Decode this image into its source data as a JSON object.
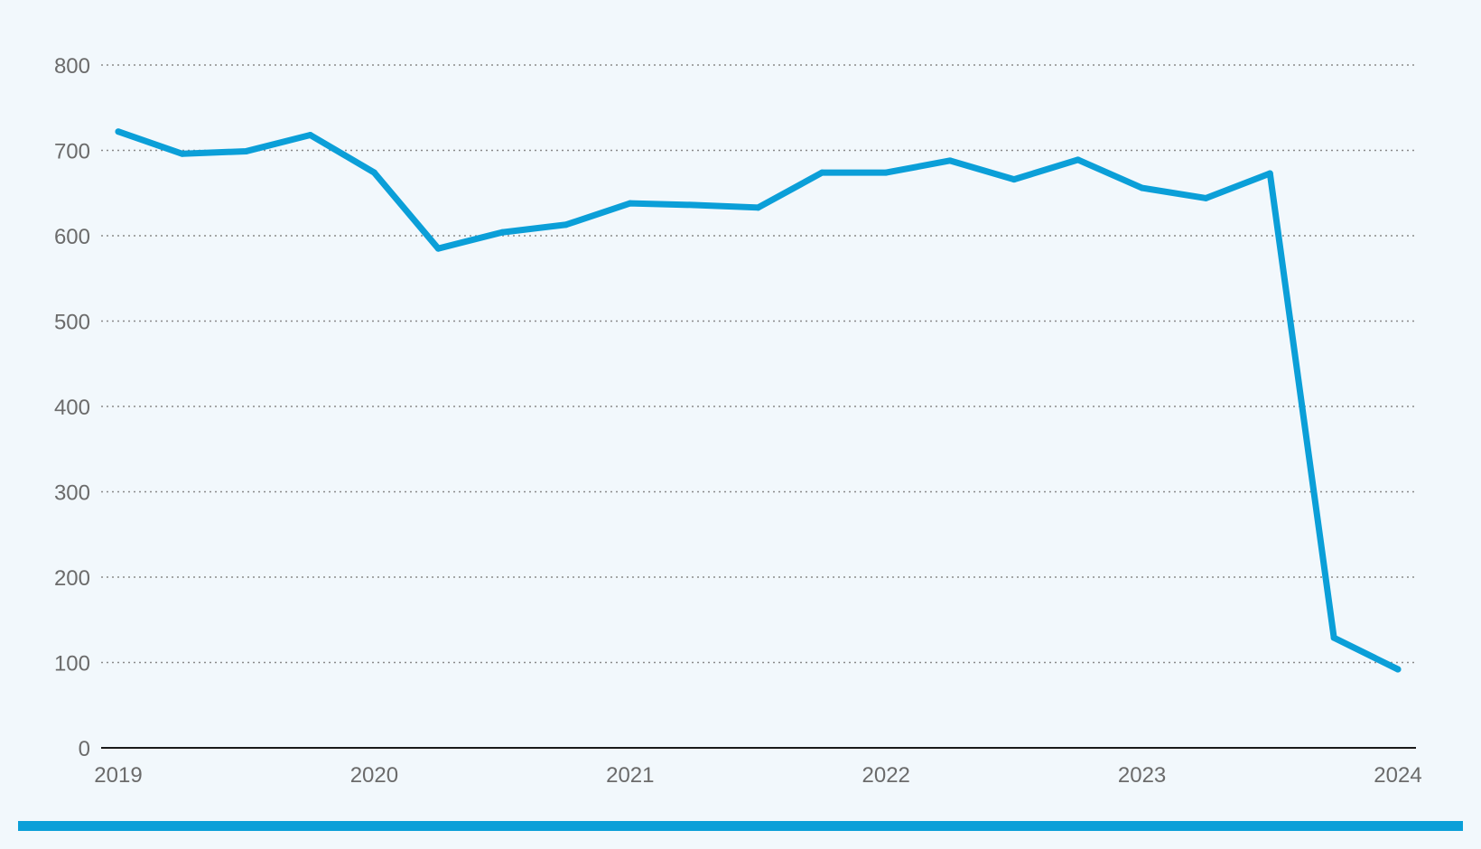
{
  "colors": {
    "background": "#f2f8fc",
    "series": "#0b9fd8",
    "grid": "#8a8a8a",
    "axis": "#1a1a1a",
    "tick_text": "#6b6b6b",
    "footer_bar": "#0b9fd8"
  },
  "chart_data": {
    "type": "line",
    "title": "",
    "xlabel": "",
    "ylabel": "",
    "ylim": [
      0,
      800
    ],
    "xlim": [
      2019,
      2024
    ],
    "y_ticks": [
      "0",
      "100",
      "200",
      "300",
      "400",
      "500",
      "600",
      "700",
      "800"
    ],
    "x_ticks": [
      "2019",
      "2020",
      "2021",
      "2022",
      "2023",
      "2024"
    ],
    "grid": "horizontal dotted",
    "legend": "none",
    "x": [
      2019.0,
      2019.25,
      2019.5,
      2019.75,
      2020.0,
      2020.25,
      2020.5,
      2020.75,
      2021.0,
      2021.25,
      2021.5,
      2021.75,
      2022.0,
      2022.25,
      2022.5,
      2022.75,
      2023.0,
      2023.25,
      2023.5,
      2023.75,
      2024.0
    ],
    "series": [
      {
        "values": [
          722,
          696,
          699,
          718,
          674,
          585,
          604,
          613,
          638,
          636,
          633,
          674,
          674,
          688,
          666,
          689,
          656,
          644,
          673,
          129,
          92
        ]
      }
    ]
  }
}
